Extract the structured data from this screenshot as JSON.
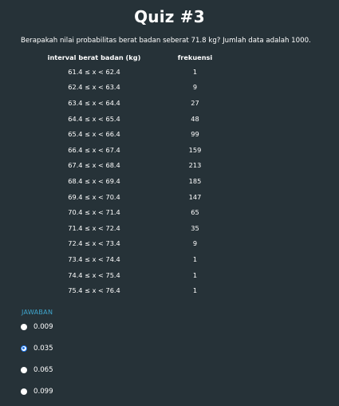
{
  "quiz": {
    "title": "Quiz #3",
    "question": "Berapakah nilai probabilitas berat badan seberat 71.8 kg? Jumlah data adalah 1000."
  },
  "table": {
    "headers": [
      "interval berat badan (kg)",
      "frekuensi"
    ],
    "rows": [
      [
        "61.4 ≤ x < 62.4",
        "1"
      ],
      [
        "62.4 ≤ x < 63.4",
        "9"
      ],
      [
        "63.4 ≤ x < 64.4",
        "27"
      ],
      [
        "64.4 ≤ x < 65.4",
        "48"
      ],
      [
        "65.4 ≤ x < 66.4",
        "99"
      ],
      [
        "66.4 ≤ x < 67.4",
        "159"
      ],
      [
        "67.4 ≤ x < 68.4",
        "213"
      ],
      [
        "68.4 ≤ x < 69.4",
        "185"
      ],
      [
        "69.4 ≤ x < 70.4",
        "147"
      ],
      [
        "70.4 ≤ x < 71.4",
        "65"
      ],
      [
        "71.4 ≤ x < 72.4",
        "35"
      ],
      [
        "72.4 ≤ x < 73.4",
        "9"
      ],
      [
        "73.4 ≤ x < 74.4",
        "1"
      ],
      [
        "74.4 ≤ x < 75.4",
        "1"
      ],
      [
        "75.4 ≤ x < 76.4",
        "1"
      ]
    ]
  },
  "answers": {
    "label": "JAWABAN",
    "options": [
      {
        "label": "0.009",
        "selected": false
      },
      {
        "label": "0.035",
        "selected": true
      },
      {
        "label": "0.065",
        "selected": false
      },
      {
        "label": "0.099",
        "selected": false
      }
    ]
  },
  "colors": {
    "background": "#263238",
    "answer_label": "#3fa7cf",
    "radio_selected": "#1a73e8"
  }
}
